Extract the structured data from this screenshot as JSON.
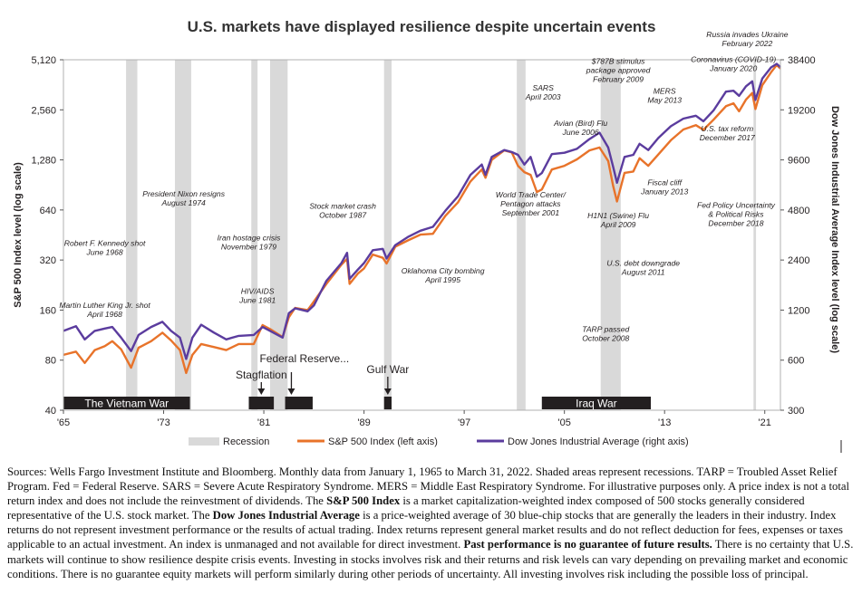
{
  "chart_data": {
    "type": "line",
    "title": "U.S. markets have displayed resilience despite uncertain events",
    "ylabel_left": "S&P 500 Index level (log scale)",
    "ylabel_right": "Dow Jones Industrial Average Index level (log scale)",
    "x_ticks": [
      1965,
      1973,
      1981,
      1989,
      1997,
      2005,
      2013,
      2021
    ],
    "x_tick_labels": [
      "'65",
      "'73",
      "'81",
      "'89",
      "'97",
      "'05",
      "'13",
      "'21"
    ],
    "xlim": [
      1965,
      2022.25
    ],
    "y_left_ticks": [
      40,
      80,
      160,
      320,
      640,
      1280,
      2560,
      5120
    ],
    "y_left_tick_labels": [
      "40",
      "80",
      "160",
      "320",
      "640",
      "1,280",
      "2,560",
      "5,120"
    ],
    "ylim_left": [
      40,
      5120
    ],
    "y_right_ticks": [
      300,
      600,
      1200,
      2400,
      4800,
      9600,
      19200,
      38400
    ],
    "y_right_tick_labels": [
      "300",
      "600",
      "1200",
      "2400",
      "4800",
      "9600",
      "19200",
      "38400"
    ],
    "ylim_right": [
      300,
      38400
    ],
    "scale": "log",
    "legend": [
      {
        "label": "Recession",
        "color": "#d9d9d9",
        "kind": "band"
      },
      {
        "label": "S&P 500 Index (left axis)",
        "color": "#e8732a",
        "kind": "line"
      },
      {
        "label": "Dow Jones Industrial Average (right axis)",
        "color": "#5b3c9e",
        "kind": "line"
      }
    ],
    "recessions": [
      [
        1970.0,
        1970.9
      ],
      [
        1973.9,
        1975.2
      ],
      [
        1980.0,
        1980.5
      ],
      [
        1981.5,
        1982.9
      ],
      [
        1990.6,
        1991.2
      ],
      [
        2001.2,
        2001.9
      ],
      [
        2007.9,
        2009.5
      ],
      [
        2020.1,
        2020.3
      ]
    ],
    "bars": [
      {
        "label": "The Vietnam War",
        "start": 1965.0,
        "end": 1975.1
      },
      {
        "label": "",
        "start": 1979.8,
        "end": 1981.8
      },
      {
        "label": "",
        "start": 1982.7,
        "end": 1984.9
      },
      {
        "label": "",
        "start": 1990.6,
        "end": 1991.2
      },
      {
        "label": "Iraq War",
        "start": 2003.2,
        "end": 2011.9
      }
    ],
    "arrow_labels": [
      {
        "label": "Stagflation",
        "x": 1980.8
      },
      {
        "label": "Federal Reserve...",
        "x": 1983.2
      },
      {
        "label": "Gulf War",
        "x": 1990.9
      }
    ],
    "annotations": [
      {
        "text": "Martin Luther King Jr. shot\nApril 1968",
        "x": 1968.3,
        "y": 165
      },
      {
        "text": "Robert F. Kennedy shot\nJune 1968",
        "x": 1968.3,
        "y": 390
      },
      {
        "text": "President Nixon resigns\nAugust 1974",
        "x": 1974.6,
        "y": 770
      },
      {
        "text": "Iran hostage crisis\nNovember 1979",
        "x": 1979.8,
        "y": 420
      },
      {
        "text": "HIV/AIDS\nJune 1981",
        "x": 1980.5,
        "y": 200
      },
      {
        "text": "Stock market crash\nOctober 1987",
        "x": 1987.3,
        "y": 650
      },
      {
        "text": "Oklahoma City bombing\nApril 1995",
        "x": 1995.3,
        "y": 265
      },
      {
        "text": "World Trade Center/\nPentagon attacks\nSeptember 2001",
        "x": 2002.3,
        "y": 760
      },
      {
        "text": "SARS\nApril 2003",
        "x": 2003.3,
        "y": 3350
      },
      {
        "text": "Avian (Bird) Flu\nJune 2006",
        "x": 2006.3,
        "y": 2050
      },
      {
        "text": "$787B stimulus\npackage approved\nFebruary 2009",
        "x": 2009.3,
        "y": 4850
      },
      {
        "text": "H1N1 (Swine) Flu\nApril 2009",
        "x": 2009.3,
        "y": 570
      },
      {
        "text": "U.S. debt  downgrade\nAugust 2011",
        "x": 2011.3,
        "y": 295
      },
      {
        "text": "TARP passed\nOctober 2008",
        "x": 2008.3,
        "y": 118
      },
      {
        "text": "MERS\nMay 2013",
        "x": 2013.0,
        "y": 3200
      },
      {
        "text": "Fiscal cliff\nJanuary 2013",
        "x": 2013.0,
        "y": 900
      },
      {
        "text": "Coronavirus (COVID-19)\nJanuary 2020",
        "x": 2018.5,
        "y": 4950
      },
      {
        "text": "U.S. tax reform\nDecember 2017",
        "x": 2018.0,
        "y": 1900
      },
      {
        "text": "Fed Policy Uncertainty\n& Political Risks\nDecember 2018",
        "x": 2018.7,
        "y": 660
      },
      {
        "text": "Russia invades Ukraine\nFebruary 2022",
        "x": 2019.6,
        "y": 7000
      }
    ],
    "series": [
      {
        "name": "S&P 500 Index (left axis)",
        "axis": "left",
        "points": [
          [
            1965.0,
            86
          ],
          [
            1966.0,
            90
          ],
          [
            1966.7,
            77
          ],
          [
            1967.5,
            92
          ],
          [
            1968.3,
            97
          ],
          [
            1968.9,
            104
          ],
          [
            1969.6,
            93
          ],
          [
            1970.4,
            72
          ],
          [
            1971.0,
            95
          ],
          [
            1972.0,
            104
          ],
          [
            1972.9,
            117
          ],
          [
            1973.6,
            105
          ],
          [
            1974.3,
            92
          ],
          [
            1974.8,
            67
          ],
          [
            1975.3,
            86
          ],
          [
            1976.0,
            100
          ],
          [
            1977.0,
            96
          ],
          [
            1978.0,
            92
          ],
          [
            1979.0,
            100
          ],
          [
            1980.2,
            100
          ],
          [
            1980.9,
            130
          ],
          [
            1981.5,
            123
          ],
          [
            1982.5,
            110
          ],
          [
            1983.0,
            145
          ],
          [
            1983.5,
            165
          ],
          [
            1984.5,
            160
          ],
          [
            1985.0,
            180
          ],
          [
            1986.0,
            230
          ],
          [
            1987.2,
            300
          ],
          [
            1987.65,
            325
          ],
          [
            1987.85,
            230
          ],
          [
            1988.5,
            265
          ],
          [
            1989.0,
            285
          ],
          [
            1989.7,
            345
          ],
          [
            1990.5,
            330
          ],
          [
            1990.8,
            305
          ],
          [
            1991.5,
            385
          ],
          [
            1992.5,
            420
          ],
          [
            1993.5,
            455
          ],
          [
            1994.5,
            460
          ],
          [
            1995.5,
            590
          ],
          [
            1996.5,
            710
          ],
          [
            1997.5,
            950
          ],
          [
            1998.4,
            1120
          ],
          [
            1998.7,
            1000
          ],
          [
            1999.2,
            1280
          ],
          [
            2000.2,
            1460
          ],
          [
            2000.8,
            1420
          ],
          [
            2001.3,
            1180
          ],
          [
            2001.8,
            1080
          ],
          [
            2002.3,
            1040
          ],
          [
            2002.8,
            820
          ],
          [
            2003.2,
            850
          ],
          [
            2004.0,
            1120
          ],
          [
            2005.0,
            1180
          ],
          [
            2006.0,
            1290
          ],
          [
            2007.0,
            1460
          ],
          [
            2007.8,
            1520
          ],
          [
            2008.5,
            1260
          ],
          [
            2008.9,
            890
          ],
          [
            2009.2,
            720
          ],
          [
            2009.8,
            1070
          ],
          [
            2010.5,
            1090
          ],
          [
            2011.0,
            1310
          ],
          [
            2011.7,
            1180
          ],
          [
            2012.5,
            1380
          ],
          [
            2013.5,
            1680
          ],
          [
            2014.5,
            1950
          ],
          [
            2015.5,
            2070
          ],
          [
            2016.1,
            1940
          ],
          [
            2016.9,
            2230
          ],
          [
            2017.9,
            2690
          ],
          [
            2018.5,
            2800
          ],
          [
            2018.95,
            2510
          ],
          [
            2019.5,
            2950
          ],
          [
            2020.0,
            3230
          ],
          [
            2020.25,
            2590
          ],
          [
            2020.8,
            3600
          ],
          [
            2021.5,
            4300
          ],
          [
            2021.95,
            4760
          ],
          [
            2022.25,
            4530
          ]
        ]
      },
      {
        "name": "Dow Jones Industrial Average (right axis)",
        "axis": "right",
        "points": [
          [
            1965.0,
            900
          ],
          [
            1966.0,
            960
          ],
          [
            1966.7,
            800
          ],
          [
            1967.5,
            900
          ],
          [
            1968.3,
            930
          ],
          [
            1968.9,
            950
          ],
          [
            1969.6,
            820
          ],
          [
            1970.4,
            680
          ],
          [
            1971.0,
            850
          ],
          [
            1972.0,
            950
          ],
          [
            1972.9,
            1020
          ],
          [
            1973.6,
            900
          ],
          [
            1974.3,
            820
          ],
          [
            1974.8,
            610
          ],
          [
            1975.3,
            820
          ],
          [
            1976.0,
            980
          ],
          [
            1977.0,
            880
          ],
          [
            1978.0,
            800
          ],
          [
            1979.0,
            840
          ],
          [
            1980.2,
            850
          ],
          [
            1980.9,
            950
          ],
          [
            1981.5,
            900
          ],
          [
            1982.5,
            820
          ],
          [
            1983.0,
            1150
          ],
          [
            1983.5,
            1230
          ],
          [
            1984.5,
            1180
          ],
          [
            1985.0,
            1280
          ],
          [
            1986.0,
            1800
          ],
          [
            1987.2,
            2300
          ],
          [
            1987.65,
            2650
          ],
          [
            1987.85,
            1850
          ],
          [
            1988.5,
            2100
          ],
          [
            1989.0,
            2300
          ],
          [
            1989.7,
            2750
          ],
          [
            1990.5,
            2800
          ],
          [
            1990.8,
            2450
          ],
          [
            1991.5,
            2950
          ],
          [
            1992.5,
            3300
          ],
          [
            1993.5,
            3600
          ],
          [
            1994.5,
            3800
          ],
          [
            1995.5,
            4750
          ],
          [
            1996.5,
            5800
          ],
          [
            1997.5,
            7800
          ],
          [
            1998.4,
            9000
          ],
          [
            1998.7,
            7800
          ],
          [
            1999.2,
            10000
          ],
          [
            2000.2,
            11000
          ],
          [
            2000.8,
            10700
          ],
          [
            2001.3,
            10300
          ],
          [
            2001.8,
            9000
          ],
          [
            2002.3,
            10000
          ],
          [
            2002.8,
            7600
          ],
          [
            2003.2,
            8000
          ],
          [
            2004.0,
            10400
          ],
          [
            2005.0,
            10600
          ],
          [
            2006.0,
            11200
          ],
          [
            2007.0,
            12800
          ],
          [
            2007.8,
            14000
          ],
          [
            2008.5,
            11400
          ],
          [
            2008.9,
            8700
          ],
          [
            2009.2,
            7000
          ],
          [
            2009.8,
            10000
          ],
          [
            2010.5,
            10300
          ],
          [
            2011.0,
            12000
          ],
          [
            2011.7,
            11000
          ],
          [
            2012.5,
            13000
          ],
          [
            2013.5,
            15300
          ],
          [
            2014.5,
            17000
          ],
          [
            2015.5,
            17700
          ],
          [
            2016.1,
            16400
          ],
          [
            2016.9,
            19000
          ],
          [
            2017.9,
            24700
          ],
          [
            2018.5,
            25000
          ],
          [
            2018.95,
            23300
          ],
          [
            2019.5,
            26600
          ],
          [
            2020.0,
            28500
          ],
          [
            2020.25,
            22000
          ],
          [
            2020.8,
            29600
          ],
          [
            2021.5,
            34500
          ],
          [
            2021.95,
            36300
          ],
          [
            2022.25,
            34700
          ]
        ]
      }
    ]
  },
  "colors": {
    "sp500": "#e8732a",
    "dow": "#5b3c9e",
    "recession": "#d9d9d9",
    "bar": "#231f20",
    "frame": "#b0b0b0"
  },
  "notes": [
    {
      "text": "Sources: Wells Fargo Investment Institute and Bloomberg. Monthly data from January 1, 1965 to March 31, 2022. Shaded areas represent recessions. TARP = Troubled Asset Relief Program. Fed = Federal Reserve. SARS = Severe Acute Respiratory Syndrome. MERS = Middle East Respiratory Syndrome. For illustrative purposes only. A price index is not a total return index and does not include the reinvestment of dividends. The ",
      "bold": false
    },
    {
      "text": "S&P 500 Index",
      "bold": true
    },
    {
      "text": " is a market capitalization-weighted index composed of 500 stocks generally considered representative of the U.S. stock market. The ",
      "bold": false
    },
    {
      "text": "Dow Jones Industrial Average",
      "bold": true
    },
    {
      "text": " is a price-weighted average of 30 blue-chip stocks that are generally the leaders in their industry. Index returns do not represent investment performance or the results of actual trading. Index returns represent general market results and do not reflect deduction for fees, expenses or taxes applicable to an actual investment. An index is unmanaged and not available for direct investment. ",
      "bold": false
    },
    {
      "text": "Past performance is no guarantee of future results.",
      "bold": true
    },
    {
      "text": " There is no certainty that U.S. markets will continue to show resilience despite crisis events. Investing in stocks involves risk and their returns and risk levels can vary depending on prevailing market and economic conditions. There is no guarantee equity markets will perform similarly during other periods of uncertainty. All investing involves risk including the possible loss of principal.",
      "bold": false
    }
  ]
}
